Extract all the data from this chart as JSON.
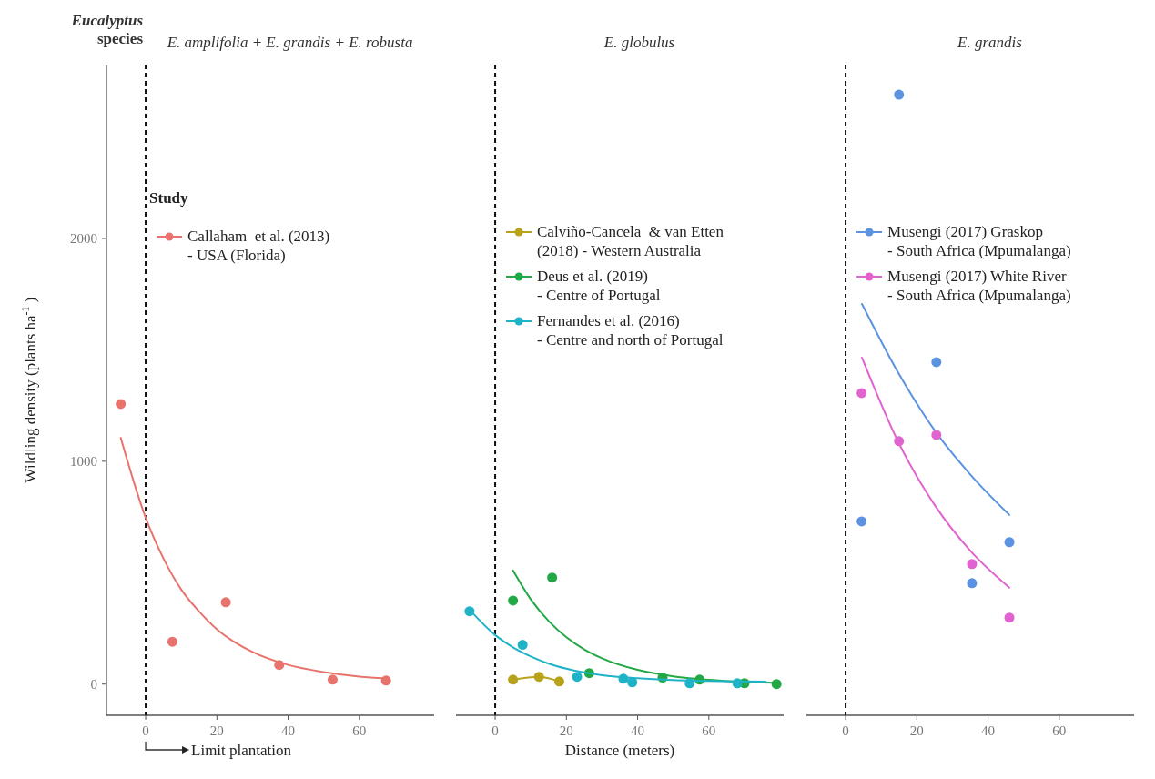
{
  "chart_data": [
    {
      "type": "scatter",
      "title": "E. amplifolia + E. grandis + E. robusta",
      "ylabel": "Wildling density (plants ha$^{-1}$ )",
      "legend_title": "Study",
      "legend": "top left",
      "annotations": [
        "Eucalyptus species",
        "Limit plantation"
      ],
      "xlim": [
        -11,
        81
      ],
      "xticks": [
        0,
        20,
        40,
        60
      ],
      "ylim": [
        -140,
        2780
      ],
      "yticks": [
        0,
        1000,
        2000
      ],
      "ref_lines": [
        {
          "axis": "x",
          "value": 0,
          "line_style": "dashed",
          "color": "#111111"
        }
      ],
      "series": [
        {
          "name": "Callaham  et al. (2013)\n- USA (Florida)",
          "color": "#e8736c",
          "x": [
            -7,
            7.5,
            22.5,
            37.5,
            52.5,
            67.5
          ],
          "values": [
            1257,
            190,
            367,
            86,
            20,
            16
          ]
        },
        {
          "type": "line",
          "color": "#e8736c",
          "x": [
            -7,
            0,
            5,
            10,
            15,
            20,
            25,
            30,
            40,
            50,
            60,
            67.5
          ],
          "values": [
            1105,
            747,
            564,
            424,
            326,
            246,
            188,
            144,
            86,
            54,
            34,
            26
          ]
        }
      ]
    },
    {
      "type": "scatter",
      "title": "E. globulus",
      "xlabel": "Distance (meters)",
      "legend": "top left",
      "tick_labels": "x",
      "xlim": [
        -11,
        81
      ],
      "xticks": [
        0,
        20,
        40,
        60
      ],
      "ylim": [
        -140,
        2780
      ],
      "ref_lines": [
        {
          "axis": "x",
          "value": 0,
          "line_style": "dashed",
          "color": "#111111"
        }
      ],
      "series": [
        {
          "name": "Calviño-Cancela  & van Etten\n(2018) - Western Australia",
          "color": "#b8a21a",
          "x": [
            5,
            12.3,
            18
          ],
          "values": [
            20,
            33,
            12
          ]
        },
        {
          "type": "line",
          "color": "#b8a21a",
          "x": [
            5,
            12.3,
            18
          ],
          "values": [
            20,
            33,
            12
          ]
        },
        {
          "name": "Deus et al. (2019)\n- Centre of Portugal",
          "color": "#22a845",
          "x": [
            5,
            16,
            26.4,
            47,
            57.4,
            70,
            79
          ],
          "values": [
            375,
            478,
            49,
            29,
            20,
            4,
            0
          ]
        },
        {
          "type": "line",
          "color": "#22a845",
          "x": [
            5,
            10,
            15,
            20,
            25,
            30,
            40,
            50,
            60,
            70,
            78
          ],
          "values": [
            510,
            380,
            283,
            210,
            156,
            116,
            64,
            35,
            19,
            10,
            6
          ]
        },
        {
          "name": "Fernandes et al. (2016)\n- Centre and north of Portugal",
          "color": "#1fb3c8",
          "x": [
            -7.2,
            7.7,
            23,
            36,
            38.5,
            54.6,
            68
          ],
          "values": [
            327,
            176,
            33,
            24,
            8,
            4,
            4
          ]
        },
        {
          "type": "line",
          "color": "#1fb3c8",
          "x": [
            -7,
            0,
            5,
            10,
            15,
            20,
            30,
            40,
            50,
            60,
            70,
            76
          ],
          "values": [
            330,
            220,
            165,
            124,
            92,
            69,
            40,
            26,
            18,
            14,
            12,
            11
          ]
        }
      ]
    },
    {
      "type": "scatter",
      "title": "E. grandis",
      "legend": "top left",
      "tick_labels": "x",
      "xlim": [
        -11,
        81
      ],
      "xticks": [
        0,
        20,
        40,
        60
      ],
      "ylim": [
        -140,
        2780
      ],
      "ref_lines": [
        {
          "axis": "x",
          "value": 0,
          "line_style": "dashed",
          "color": "#111111"
        }
      ],
      "series": [
        {
          "name": "Musengi (2017) Graskop\n- South Africa (Mpumalanga)",
          "color": "#5b93e0",
          "x": [
            4.5,
            15,
            25.5,
            35.5,
            46
          ],
          "values": [
            730,
            2645,
            1445,
            453,
            637
          ]
        },
        {
          "type": "line",
          "color": "#5b93e0",
          "x": [
            4.6,
            15,
            25,
            35,
            46
          ],
          "values": [
            1706,
            1391,
            1139,
            941,
            759
          ]
        },
        {
          "name": "Musengi (2017) White River\n- South Africa (Mpumalanga)",
          "color": "#e063d0",
          "x": [
            4.5,
            15,
            25.5,
            35.5,
            46
          ],
          "values": [
            1306,
            1090,
            1118,
            539,
            298
          ]
        },
        {
          "type": "line",
          "color": "#e063d0",
          "x": [
            4.6,
            15,
            25,
            35,
            46
          ],
          "values": [
            1465,
            1080,
            804,
            599,
            433
          ]
        }
      ]
    }
  ]
}
